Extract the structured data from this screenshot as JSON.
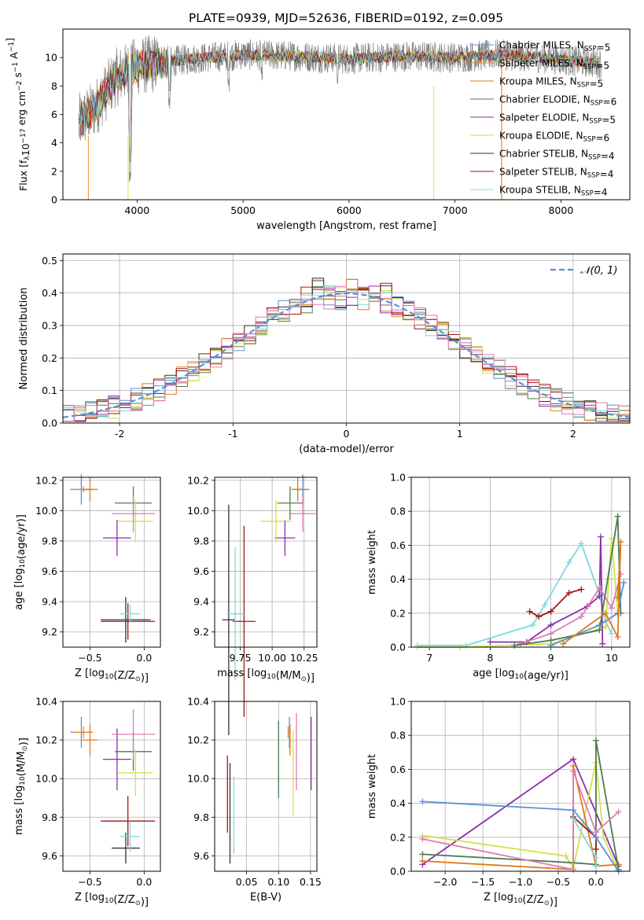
{
  "figure": {
    "title": "PLATE=0939, MJD=52636, FIBERID=0192, z=0.095"
  },
  "colors": {
    "Chabrier MILES": "#5b8fd6",
    "Salpeter MILES": "#ef8a1c",
    "Kroupa MILES": "#e0781a",
    "Chabrier ELODIE": "#4e7a4e",
    "Salpeter ELODIE": "#8e2ea8",
    "Kroupa ELODIE": "#cfe44a",
    "Chabrier STELIB": "#333333",
    "Salpeter STELIB": "#a31515",
    "Kroupa STELIB": "#7fd8e0",
    "pink": "#e07bb5",
    "data": "#808080"
  },
  "chart_data": [
    {
      "type": "line",
      "panel": "spectrum",
      "xlabel": "wavelength [Angstrom, rest frame]",
      "ylabel": "Flux [f_λ10^{-17} erg cm^{-2} s^{-1} A^{-1}]",
      "xlim": [
        3300,
        8650
      ],
      "ylim": [
        0,
        12
      ],
      "xticks": [
        4000,
        5000,
        6000,
        7000,
        8000
      ],
      "yticks": [
        0,
        2,
        4,
        6,
        8,
        10
      ],
      "grid": false,
      "legend_position": "right",
      "legend": [
        {
          "label": "Chabrier MILES, N_SSP=5",
          "color": "#5b8fd6"
        },
        {
          "label": "Salpeter MILES, N_SSP=5",
          "color": "#ef8a1c"
        },
        {
          "label": "Kroupa MILES, N_SSP=5",
          "color": "#e0781a"
        },
        {
          "label": "Chabrier ELODIE, N_SSP=6",
          "color": "#4e7a4e"
        },
        {
          "label": "Salpeter ELODIE, N_SSP=5",
          "color": "#8e2ea8"
        },
        {
          "label": "Kroupa ELODIE, N_SSP=6",
          "color": "#cfe44a"
        },
        {
          "label": "Chabrier STELIB, N_SSP=4",
          "color": "#333333"
        },
        {
          "label": "Salpeter STELIB, N_SSP=4",
          "color": "#a31515"
        },
        {
          "label": "Kroupa STELIB, N_SSP=4",
          "color": "#7fd8e0"
        }
      ],
      "continuum": {
        "x": [
          3450,
          3600,
          3800,
          4000,
          4200,
          4500,
          5000,
          5500,
          6000,
          6500,
          7000,
          7400,
          7800,
          8200,
          8380
        ],
        "y": [
          5.4,
          6.4,
          8.6,
          9.4,
          9.6,
          9.9,
          10.2,
          10.1,
          9.9,
          10.1,
          10.0,
          10.2,
          10.0,
          9.7,
          9.6
        ]
      },
      "absorption_lines": [
        {
          "x": 3934,
          "y": 1.2
        },
        {
          "x": 4305,
          "y": 6.2
        },
        {
          "x": 4863,
          "y": 7.6
        },
        {
          "x": 5175,
          "y": 8.4
        },
        {
          "x": 5893,
          "y": 8.1
        }
      ]
    },
    {
      "type": "line",
      "panel": "residuals",
      "xlabel": "(data-model)/error",
      "ylabel": "Normed distribution",
      "xlim": [
        -2.5,
        2.5
      ],
      "ylim": [
        0,
        0.52
      ],
      "xticks": [
        -2,
        -1,
        0,
        1,
        2
      ],
      "yticks": [
        0.0,
        0.1,
        0.2,
        0.3,
        0.4,
        0.5
      ],
      "grid": true,
      "legend": [
        {
          "label": "𝒩(0, 1)",
          "color": "#5b8fd6",
          "style": "dashed"
        }
      ],
      "gaussian": {
        "mean": 0,
        "sigma": 1
      },
      "bin_width": 0.1
    },
    {
      "type": "scatter",
      "panel": "age_vs_Z",
      "xlabel": "Z [log10(Z/Z☉)]",
      "ylabel": "age  [log10(age/yr)]",
      "xlim": [
        -0.75,
        0.15
      ],
      "ylim": [
        9.1,
        10.22
      ],
      "xticks": [
        -0.5,
        0.0
      ],
      "xtick_labels": [
        "−0.5",
        "0.0"
      ],
      "yticks": [
        9.2,
        9.4,
        9.6,
        9.8,
        10.0,
        10.2
      ],
      "grid": true,
      "points": [
        {
          "x": -0.58,
          "y": 10.14,
          "xerr": 0.1,
          "yerr": 0.1,
          "color": "#5b8fd6"
        },
        {
          "x": -0.56,
          "y": 10.14,
          "xerr": 0.09,
          "yerr": 0.02,
          "color": "#ef8a1c"
        },
        {
          "x": -0.5,
          "y": 10.14,
          "xerr": 0.07,
          "yerr": 0.08,
          "color": "#e0781a"
        },
        {
          "x": -0.1,
          "y": 10.05,
          "xerr": 0.17,
          "yerr": 0.11,
          "color": "#4e7a4e"
        },
        {
          "x": -0.25,
          "y": 9.82,
          "xerr": 0.13,
          "yerr": 0.12,
          "color": "#8e2ea8"
        },
        {
          "x": -0.08,
          "y": 9.93,
          "xerr": 0.16,
          "yerr": 0.14,
          "color": "#cfe44a"
        },
        {
          "x": -0.17,
          "y": 9.28,
          "xerr": 0.23,
          "yerr": 0.15,
          "color": "#333333"
        },
        {
          "x": -0.15,
          "y": 9.27,
          "xerr": 0.25,
          "yerr": 0.12,
          "color": "#a31515"
        },
        {
          "x": -0.13,
          "y": 9.32,
          "xerr": 0.09,
          "yerr": 0.06,
          "color": "#7fd8e0"
        },
        {
          "x": -0.1,
          "y": 9.98,
          "xerr": 0.2,
          "yerr": 0.12,
          "color": "#e07bb5"
        }
      ]
    },
    {
      "type": "scatter",
      "panel": "age_vs_mass",
      "xlabel": "mass [log10(M/M☉)]",
      "ylabel": "",
      "xlim": [
        9.55,
        10.35
      ],
      "ylim": [
        9.1,
        10.22
      ],
      "xticks": [
        9.75,
        10.0,
        10.25
      ],
      "xtick_labels": [
        "9.75",
        "10.00",
        "10.25"
      ],
      "yticks": [
        9.2,
        9.4,
        9.6,
        9.8,
        10.0,
        10.2
      ],
      "grid": true,
      "points": [
        {
          "x": 10.24,
          "y": 10.14,
          "xerr": 0.05,
          "yerr": 0.1,
          "color": "#5b8fd6"
        },
        {
          "x": 10.2,
          "y": 10.14,
          "xerr": 0.05,
          "yerr": 0.02,
          "color": "#ef8a1c"
        },
        {
          "x": 10.2,
          "y": 10.14,
          "xerr": 0.04,
          "yerr": 0.08,
          "color": "#e0781a"
        },
        {
          "x": 10.14,
          "y": 10.05,
          "xerr": 0.1,
          "yerr": 0.11,
          "color": "#4e7a4e"
        },
        {
          "x": 10.1,
          "y": 9.82,
          "xerr": 0.08,
          "yerr": 0.12,
          "color": "#8e2ea8"
        },
        {
          "x": 10.03,
          "y": 9.93,
          "xerr": 0.12,
          "yerr": 0.14,
          "color": "#cfe44a"
        },
        {
          "x": 9.66,
          "y": 9.28,
          "xerr": 0.05,
          "yerr": 0.76,
          "color": "#333333"
        },
        {
          "x": 9.78,
          "y": 9.27,
          "xerr": 0.09,
          "yerr": 0.63,
          "color": "#a31515"
        },
        {
          "x": 9.71,
          "y": 9.32,
          "xerr": 0.07,
          "yerr": 0.44,
          "color": "#7fd8e0"
        },
        {
          "x": 10.24,
          "y": 9.98,
          "xerr": 0.1,
          "yerr": 0.12,
          "color": "#e07bb5"
        }
      ]
    },
    {
      "type": "line",
      "panel": "massweight_vs_age",
      "xlabel": "age  [log10(age/yr)]",
      "ylabel": "mass weight",
      "xlim": [
        6.7,
        10.3
      ],
      "ylim": [
        0,
        1
      ],
      "xticks": [
        7,
        8,
        9,
        10
      ],
      "yticks": [
        0.0,
        0.2,
        0.4,
        0.6,
        0.8,
        1.0
      ],
      "grid": true,
      "series": [
        {
          "color": "#7fd8e0",
          "points": [
            [
              6.8,
              0.01
            ],
            [
              7.6,
              0.01
            ],
            [
              8.7,
              0.13
            ],
            [
              8.9,
              0.25
            ],
            [
              9.3,
              0.5
            ],
            [
              9.5,
              0.61
            ],
            [
              9.8,
              0.31
            ],
            [
              9.9,
              0.15
            ],
            [
              10.0,
              0.08
            ]
          ]
        },
        {
          "color": "#cfe44a",
          "points": [
            [
              6.8,
              0.0
            ],
            [
              7.5,
              0.0
            ],
            [
              9.0,
              0.02
            ],
            [
              9.9,
              0.12
            ],
            [
              10.0,
              0.64
            ],
            [
              10.1,
              0.2
            ]
          ]
        },
        {
          "color": "#a31515",
          "points": [
            [
              8.65,
              0.21
            ],
            [
              8.8,
              0.18
            ],
            [
              9.0,
              0.21
            ],
            [
              9.3,
              0.32
            ],
            [
              9.5,
              0.34
            ]
          ]
        },
        {
          "color": "#8e2ea8",
          "points": [
            [
              8.0,
              0.03
            ],
            [
              8.6,
              0.03
            ],
            [
              9.0,
              0.13
            ],
            [
              9.6,
              0.24
            ],
            [
              9.8,
              0.3
            ],
            [
              9.82,
              0.65
            ],
            [
              9.85,
              0.02
            ]
          ]
        },
        {
          "color": "#e07bb5",
          "points": [
            [
              8.5,
              0.02
            ],
            [
              9.0,
              0.08
            ],
            [
              9.5,
              0.18
            ],
            [
              9.8,
              0.35
            ],
            [
              10.0,
              0.23
            ],
            [
              10.15,
              0.43
            ]
          ]
        },
        {
          "color": "#4e7a4e",
          "points": [
            [
              8.4,
              0.01
            ],
            [
              9.0,
              0.04
            ],
            [
              9.8,
              0.1
            ],
            [
              10.1,
              0.77
            ],
            [
              10.15,
              0.2
            ]
          ]
        },
        {
          "color": "#5b8fd6",
          "points": [
            [
              9.0,
              0.01
            ],
            [
              9.8,
              0.13
            ],
            [
              10.1,
              0.2
            ],
            [
              10.2,
              0.38
            ]
          ]
        },
        {
          "color": "#e0781a",
          "points": [
            [
              9.2,
              0.02
            ],
            [
              9.9,
              0.2
            ],
            [
              10.1,
              0.06
            ],
            [
              10.15,
              0.62
            ],
            [
              10.1,
              0.29
            ]
          ]
        }
      ]
    },
    {
      "type": "scatter",
      "panel": "mass_vs_Z",
      "xlabel": "Z [log10(Z/Z☉)]",
      "ylabel": "mass [log10(M/M☉)]",
      "xlim": [
        -0.75,
        0.15
      ],
      "ylim": [
        9.52,
        10.4
      ],
      "xticks": [
        -0.5,
        0.0
      ],
      "xtick_labels": [
        "−0.5",
        "0.0"
      ],
      "yticks": [
        9.6,
        9.8,
        10.0,
        10.2,
        10.4
      ],
      "grid": true,
      "points": [
        {
          "x": -0.58,
          "y": 10.24,
          "xerr": 0.1,
          "yerr": 0.08,
          "color": "#5b8fd6"
        },
        {
          "x": -0.56,
          "y": 10.24,
          "xerr": 0.09,
          "yerr": 0.03,
          "color": "#ef8a1c"
        },
        {
          "x": -0.5,
          "y": 10.2,
          "xerr": 0.07,
          "yerr": 0.08,
          "color": "#e0781a"
        },
        {
          "x": -0.1,
          "y": 10.14,
          "xerr": 0.17,
          "yerr": 0.1,
          "color": "#4e7a4e"
        },
        {
          "x": -0.25,
          "y": 10.1,
          "xerr": 0.13,
          "yerr": 0.16,
          "color": "#8e2ea8"
        },
        {
          "x": -0.08,
          "y": 10.03,
          "xerr": 0.16,
          "yerr": 0.12,
          "color": "#cfe44a"
        },
        {
          "x": -0.17,
          "y": 9.64,
          "xerr": 0.13,
          "yerr": 0.08,
          "color": "#333333"
        },
        {
          "x": -0.15,
          "y": 9.78,
          "xerr": 0.25,
          "yerr": 0.13,
          "color": "#a31515"
        },
        {
          "x": -0.13,
          "y": 9.7,
          "xerr": 0.09,
          "yerr": 0.08,
          "color": "#7fd8e0"
        },
        {
          "x": -0.1,
          "y": 10.23,
          "xerr": 0.2,
          "yerr": 0.13,
          "color": "#e07bb5"
        }
      ]
    },
    {
      "type": "scatter",
      "panel": "mass_vs_EBV",
      "xlabel": "E(B-V)",
      "ylabel": "",
      "xlim": [
        0.0,
        0.16
      ],
      "ylim": [
        9.52,
        10.4
      ],
      "xticks": [
        0.05,
        0.1,
        0.15
      ],
      "xtick_labels": [
        "0.05",
        "0.10",
        "0.15"
      ],
      "yticks": [
        9.6,
        9.8,
        10.0,
        10.2,
        10.4
      ],
      "grid": true,
      "points": [
        {
          "x": 0.117,
          "y": 10.24,
          "yerr": 0.08,
          "color": "#5b8fd6"
        },
        {
          "x": 0.115,
          "y": 10.24,
          "yerr": 0.03,
          "color": "#ef8a1c"
        },
        {
          "x": 0.118,
          "y": 10.2,
          "yerr": 0.08,
          "color": "#e0781a"
        },
        {
          "x": 0.1,
          "y": 10.1,
          "yerr": 0.2,
          "color": "#4e7a4e"
        },
        {
          "x": 0.151,
          "y": 10.13,
          "yerr": 0.19,
          "color": "#8e2ea8"
        },
        {
          "x": 0.123,
          "y": 10.03,
          "yerr": 0.22,
          "color": "#cfe44a"
        },
        {
          "x": 0.024,
          "y": 9.82,
          "yerr": 0.26,
          "color": "#333333"
        },
        {
          "x": 0.02,
          "y": 9.92,
          "yerr": 0.2,
          "color": "#a31515"
        },
        {
          "x": 0.03,
          "y": 9.81,
          "yerr": 0.2,
          "color": "#7fd8e0"
        },
        {
          "x": 0.128,
          "y": 10.14,
          "yerr": 0.2,
          "color": "#e07bb5"
        }
      ]
    },
    {
      "type": "line",
      "panel": "massweight_vs_Z",
      "xlabel": "Z [log10(Z/Z☉)]",
      "ylabel": "mass weight",
      "xlim": [
        -2.45,
        0.45
      ],
      "ylim": [
        0,
        1
      ],
      "xticks": [
        -2.0,
        -1.5,
        -1.0,
        -0.5,
        0.0
      ],
      "xtick_labels": [
        "−2.0",
        "−1.5",
        "−1.0",
        "−0.5",
        "0.0"
      ],
      "yticks": [
        0.0,
        0.2,
        0.4,
        0.6,
        0.8,
        1.0
      ],
      "grid": true,
      "series": [
        {
          "color": "#8e2ea8",
          "points": [
            [
              -2.3,
              0.04
            ],
            [
              -0.3,
              0.66
            ],
            [
              0.3,
              0.03
            ]
          ]
        },
        {
          "color": "#cfe44a",
          "points": [
            [
              -2.3,
              0.21
            ],
            [
              -0.4,
              0.09
            ],
            [
              -0.3,
              0.02
            ],
            [
              0.0,
              0.64
            ],
            [
              0.1,
              0.2
            ],
            [
              0.3,
              0.0
            ]
          ]
        },
        {
          "color": "#e0781a",
          "points": [
            [
              -2.3,
              0.06
            ],
            [
              -0.3,
              0.01
            ],
            [
              -0.3,
              0.62
            ],
            [
              0.0,
              0.03
            ],
            [
              0.3,
              0.04
            ]
          ]
        },
        {
          "color": "#4e7a4e",
          "points": [
            [
              -2.3,
              0.1
            ],
            [
              -0.3,
              0.05
            ],
            [
              0.0,
              0.04
            ],
            [
              0.0,
              0.77
            ],
            [
              0.3,
              0.01
            ]
          ]
        },
        {
          "color": "#e07bb5",
          "points": [
            [
              -2.3,
              0.19
            ],
            [
              -0.3,
              0.01
            ],
            [
              -0.3,
              0.59
            ],
            [
              0.0,
              0.23
            ],
            [
              0.3,
              0.35
            ]
          ]
        },
        {
          "color": "#a31515",
          "points": [
            [
              -0.3,
              0.32
            ],
            [
              0.0,
              0.2
            ],
            [
              0.0,
              0.13
            ]
          ]
        },
        {
          "color": "#5b8fd6",
          "points": [
            [
              -2.3,
              0.41
            ],
            [
              -0.3,
              0.36
            ],
            [
              0.0,
              0.2
            ],
            [
              0.3,
              0.0
            ]
          ]
        },
        {
          "color": "#7fd8e0",
          "points": [
            [
              -0.3,
              0.31
            ],
            [
              0.0,
              0.08
            ],
            [
              0.0,
              0.03
            ]
          ]
        }
      ]
    }
  ]
}
